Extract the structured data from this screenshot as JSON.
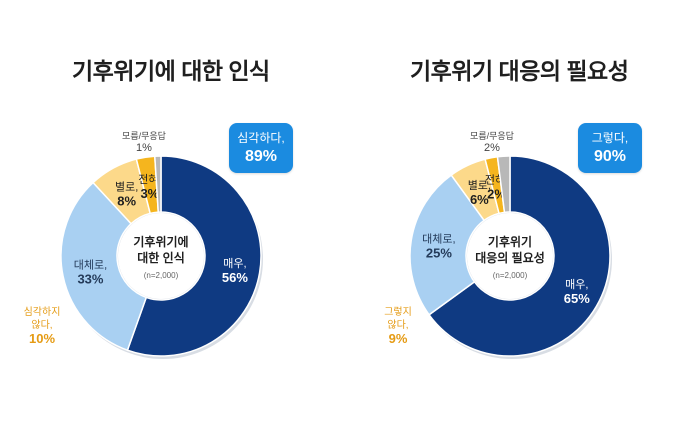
{
  "chart_data": [
    {
      "type": "pie",
      "title": "기후위기에 대한 인식",
      "center_title": "기후위기에\n대한 인식",
      "center_note": "(n=2,000)",
      "callout": {
        "label": "심각하다,",
        "value": "89%"
      },
      "slices": [
        {
          "label": "매우,",
          "value": 56,
          "display": "56%",
          "color": "#0f3a82",
          "text_color": "#ffffff"
        },
        {
          "label": "대체로,",
          "value": 33,
          "display": "33%",
          "color": "#a9d0f2",
          "text_color": "#243b5a"
        },
        {
          "label": "별로,",
          "value": 8,
          "display": "8%",
          "color": "#fcd98a",
          "text_color": "#1f1f1f"
        },
        {
          "label": "전혀,",
          "value": 3,
          "display": "3%",
          "color": "#f5b51e",
          "text_color": "#1f1f1f"
        },
        {
          "label": "모름/무응답",
          "value": 1,
          "display": "1%",
          "color": "#b8b8b8",
          "text_color": "#444444"
        }
      ],
      "outside_label": {
        "label": "심각하지\n않다,",
        "value": "10%"
      }
    },
    {
      "type": "pie",
      "title": "기후위기 대응의 필요성",
      "center_title": "기후위기\n대응의 필요성",
      "center_note": "(n=2,000)",
      "callout": {
        "label": "그렇다,",
        "value": "90%"
      },
      "slices": [
        {
          "label": "매우,",
          "value": 65,
          "display": "65%",
          "color": "#0f3a82",
          "text_color": "#ffffff"
        },
        {
          "label": "대체로,",
          "value": 25,
          "display": "25%",
          "color": "#a9d0f2",
          "text_color": "#243b5a"
        },
        {
          "label": "별로,",
          "value": 6,
          "display": "6%",
          "color": "#fcd98a",
          "text_color": "#1f1f1f"
        },
        {
          "label": "전혀,",
          "value": 2,
          "display": "2%",
          "color": "#f5b51e",
          "text_color": "#1f1f1f"
        },
        {
          "label": "모름/무응답",
          "value": 2,
          "display": "2%",
          "color": "#b8b8b8",
          "text_color": "#444444"
        }
      ],
      "outside_label": {
        "label": "그렇지\n않다,",
        "value": "9%"
      }
    }
  ],
  "colors": {
    "accent": "#1b8be0",
    "outside_text": "#e59b14"
  }
}
